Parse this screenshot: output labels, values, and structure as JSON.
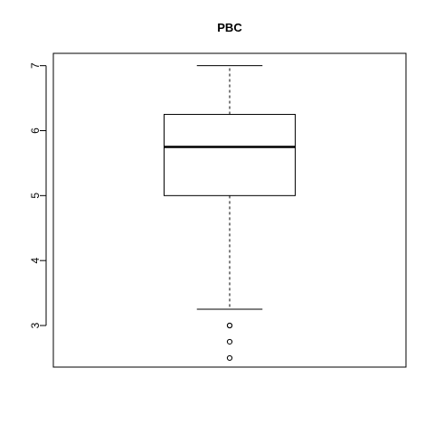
{
  "chart_data": {
    "type": "boxplot",
    "title": "PBC",
    "xlabel": "",
    "ylabel": "",
    "ylim": [
      2.36,
      7.19
    ],
    "yticks": [
      3,
      4,
      5,
      6,
      7
    ],
    "grid": false,
    "boxes": [
      {
        "whisker_low": 3.25,
        "q1": 5.0,
        "median": 5.75,
        "q3": 6.25,
        "whisker_high": 7.0,
        "outliers": [
          3.0,
          3.0,
          2.75,
          2.5
        ]
      }
    ]
  }
}
